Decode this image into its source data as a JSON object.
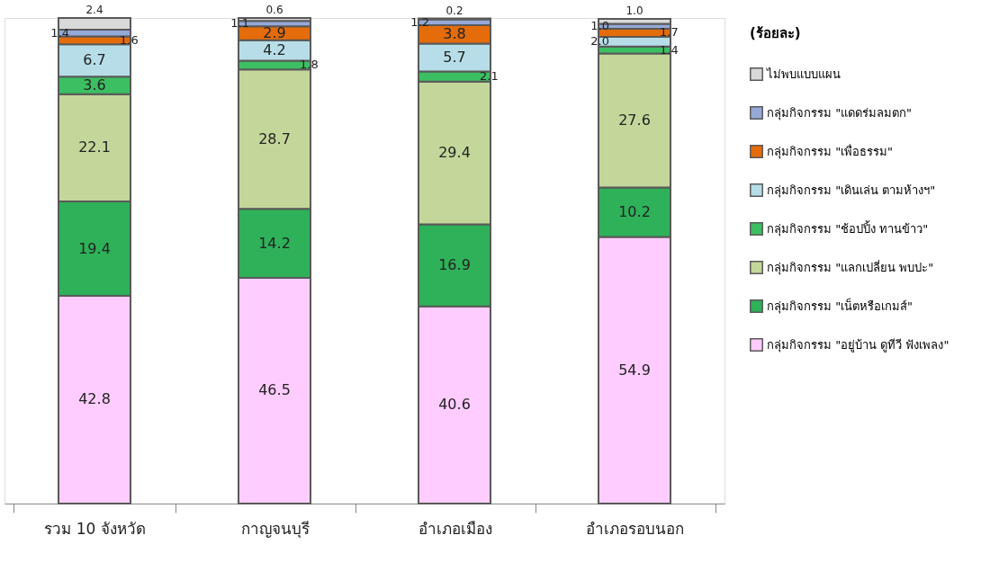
{
  "chart_data": {
    "type": "bar",
    "stacked": true,
    "legend": "right",
    "legend_title": "(ร้อยละ)",
    "categories": [
      "รวม 10 จังหวัด",
      "กาญจนบุรี",
      "อำเภอเมือง",
      "อำเภอรอบนอก"
    ],
    "series": [
      {
        "name": "กลุ่มกิจกรรม \"อยู่บ้าน ดูทีวี ฟังเพลง\"",
        "color": "#ffccff",
        "values": [
          42.8,
          46.5,
          40.6,
          54.9
        ],
        "value_labels": [
          "42.8",
          "46.5",
          "40.6",
          "54.9"
        ]
      },
      {
        "name": "กลุ่มกิจกรรม \"เน็ตหรือเกมส์\"",
        "color": "#2eb159",
        "values": [
          19.4,
          14.2,
          16.9,
          10.2
        ],
        "value_labels": [
          "19.4",
          "14.2",
          "16.9",
          "10.2"
        ]
      },
      {
        "name": "กลุ่มกิจกรรม \"แลกเปลี่ยน พบปะ\"",
        "color": "#c4d79b",
        "values": [
          22.1,
          28.7,
          29.4,
          27.6
        ],
        "value_labels": [
          "22.1",
          "28.7",
          "29.4",
          "27.6"
        ]
      },
      {
        "name": "กลุ่มกิจกรรม \"ช้อปปิ้ง ทานข้าว\"",
        "color": "#3cbf62",
        "values": [
          3.6,
          1.8,
          2.1,
          1.4
        ],
        "value_labels": [
          "3.6",
          "1.8",
          "2.1",
          "1.4"
        ]
      },
      {
        "name": "กลุ่มกิจกรรม \"เดินเล่น ตามห้างฯ\"",
        "color": "#b7dee8",
        "values": [
          6.7,
          4.2,
          5.7,
          2.0
        ],
        "value_labels": [
          "6.7",
          "4.2",
          "5.7",
          "2.0"
        ]
      },
      {
        "name": "กลุ่มกิจกรรม \"เพื่อธรรม\"",
        "color": "#e46c0a",
        "values": [
          1.6,
          2.9,
          3.8,
          1.7
        ],
        "value_labels": [
          "1.6",
          "2.9",
          "3.8",
          "1.7"
        ]
      },
      {
        "name": "กลุ่มกิจกรรม \"แดดร่มลมตก\"",
        "color": "#95a9d7",
        "values": [
          1.4,
          1.1,
          1.2,
          1.0
        ],
        "value_labels": [
          "1.4",
          "1.1",
          "1.2",
          "1.0"
        ]
      },
      {
        "name": "ไม่พบแบบแผน",
        "color": "#d9d9d9",
        "values": [
          2.4,
          0.6,
          0.2,
          1.0
        ],
        "value_labels": [
          "2.4",
          "0.6",
          "0.2",
          "1.0"
        ]
      }
    ]
  }
}
